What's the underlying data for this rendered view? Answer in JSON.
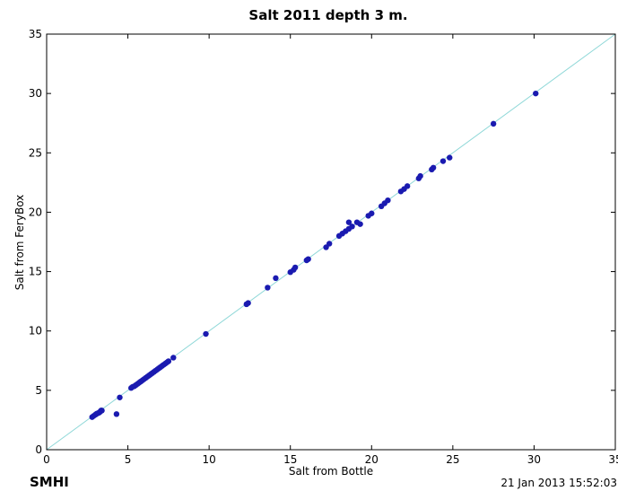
{
  "chart_data": {
    "type": "scatter",
    "title": "Salt 2011 depth 3 m.",
    "xlabel": "Salt from Bottle",
    "ylabel": "Salt from FeryBox",
    "xlim": [
      0,
      35
    ],
    "ylim": [
      0,
      35
    ],
    "xticks": [
      "0",
      "5",
      "10",
      "15",
      "20",
      "25",
      "30",
      "35"
    ],
    "yticks": [
      "0",
      "5",
      "10",
      "15",
      "20",
      "25",
      "30",
      "35"
    ],
    "grid": false,
    "reference_line": {
      "from": [
        0,
        0
      ],
      "to": [
        35,
        35
      ],
      "color": "#8fd8d8"
    },
    "marker_color": "#1a1ab0",
    "points": [
      [
        2.8,
        2.75
      ],
      [
        2.9,
        2.85
      ],
      [
        3.0,
        2.95
      ],
      [
        3.05,
        3.0
      ],
      [
        3.1,
        3.05
      ],
      [
        3.2,
        3.1
      ],
      [
        3.25,
        3.15
      ],
      [
        3.3,
        3.2
      ],
      [
        3.35,
        3.3
      ],
      [
        3.4,
        3.3
      ],
      [
        4.3,
        3.0
      ],
      [
        4.5,
        4.4
      ],
      [
        5.2,
        5.2
      ],
      [
        5.3,
        5.3
      ],
      [
        5.4,
        5.35
      ],
      [
        5.5,
        5.45
      ],
      [
        5.6,
        5.55
      ],
      [
        5.7,
        5.65
      ],
      [
        5.8,
        5.75
      ],
      [
        5.9,
        5.85
      ],
      [
        6.0,
        5.95
      ],
      [
        6.1,
        6.05
      ],
      [
        6.2,
        6.15
      ],
      [
        6.3,
        6.25
      ],
      [
        6.4,
        6.35
      ],
      [
        6.5,
        6.45
      ],
      [
        6.6,
        6.55
      ],
      [
        6.7,
        6.65
      ],
      [
        6.8,
        6.75
      ],
      [
        6.9,
        6.85
      ],
      [
        7.0,
        6.95
      ],
      [
        7.1,
        7.05
      ],
      [
        7.2,
        7.15
      ],
      [
        7.3,
        7.25
      ],
      [
        7.4,
        7.35
      ],
      [
        7.5,
        7.45
      ],
      [
        7.8,
        7.75
      ],
      [
        9.8,
        9.75
      ],
      [
        12.3,
        12.25
      ],
      [
        12.4,
        12.35
      ],
      [
        13.6,
        13.65
      ],
      [
        14.1,
        14.45
      ],
      [
        15.0,
        14.95
      ],
      [
        15.2,
        15.15
      ],
      [
        15.3,
        15.35
      ],
      [
        16.0,
        15.95
      ],
      [
        16.1,
        16.05
      ],
      [
        17.2,
        17.05
      ],
      [
        17.4,
        17.35
      ],
      [
        18.0,
        18.0
      ],
      [
        18.2,
        18.2
      ],
      [
        18.4,
        18.4
      ],
      [
        18.6,
        18.6
      ],
      [
        18.6,
        19.15
      ],
      [
        18.8,
        18.8
      ],
      [
        19.1,
        19.15
      ],
      [
        19.3,
        19.0
      ],
      [
        19.8,
        19.7
      ],
      [
        20.0,
        19.9
      ],
      [
        20.6,
        20.5
      ],
      [
        20.8,
        20.75
      ],
      [
        21.0,
        21.0
      ],
      [
        21.8,
        21.75
      ],
      [
        22.0,
        21.95
      ],
      [
        22.2,
        22.2
      ],
      [
        22.9,
        22.85
      ],
      [
        23.0,
        23.05
      ],
      [
        23.7,
        23.6
      ],
      [
        23.8,
        23.75
      ],
      [
        24.4,
        24.3
      ],
      [
        24.8,
        24.6
      ],
      [
        27.5,
        27.45
      ],
      [
        30.1,
        30.0
      ]
    ]
  },
  "footer": {
    "left": "SMHI",
    "right": "21 Jan 2013 15:52:03"
  }
}
